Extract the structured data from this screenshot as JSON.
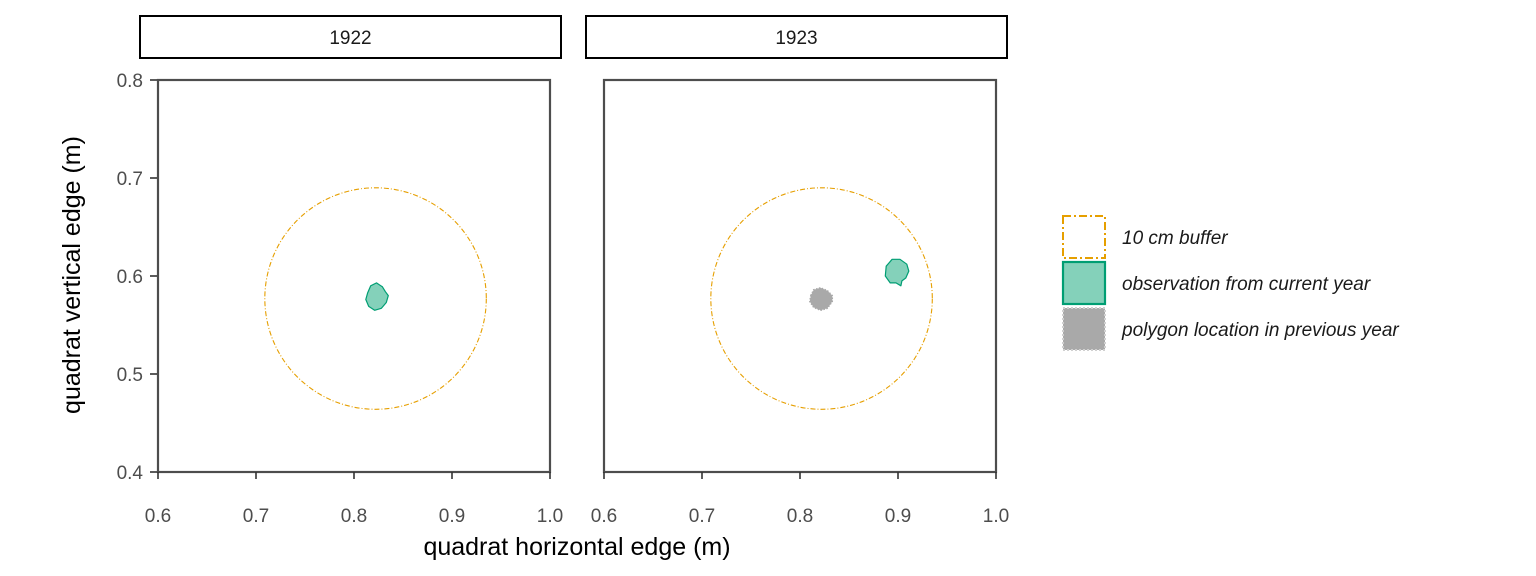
{
  "chart_data": {
    "type": "map",
    "xlabel": "quadrat horizontal edge (m)",
    "ylabel": "quadrat vertical edge (m)",
    "xlim": [
      0.6,
      1.0
    ],
    "ylim": [
      0.4,
      0.8
    ],
    "x_ticks": [
      "0.6",
      "0.7",
      "0.8",
      "0.9",
      "1.0"
    ],
    "y_ticks": [
      "0.4",
      "0.5",
      "0.6",
      "0.7",
      "0.8"
    ],
    "grid": false,
    "legend_position": "right",
    "legend": [
      {
        "label": "10 cm buffer",
        "style": "dashdot-outline",
        "color": "#E69F00"
      },
      {
        "label": "observation from current year",
        "style": "filled",
        "color": "#009E73",
        "fill": "#84D1BA"
      },
      {
        "label": "polygon location in previous year",
        "style": "filled-dotted",
        "color": "#A9A9A9",
        "fill": "#A9A9A9"
      }
    ],
    "panels": [
      {
        "strip": "1922",
        "buffer": {
          "cx": 0.822,
          "cy": 0.577,
          "r": 0.113
        },
        "current": [
          [
            0.814,
            0.583
          ],
          [
            0.817,
            0.59
          ],
          [
            0.823,
            0.593
          ],
          [
            0.829,
            0.589
          ],
          [
            0.832,
            0.584
          ],
          [
            0.835,
            0.58
          ],
          [
            0.833,
            0.573
          ],
          [
            0.828,
            0.567
          ],
          [
            0.821,
            0.565
          ],
          [
            0.815,
            0.569
          ],
          [
            0.812,
            0.576
          ]
        ],
        "previous": []
      },
      {
        "strip": "1923",
        "buffer": {
          "cx": 0.822,
          "cy": 0.577,
          "r": 0.113
        },
        "current": [
          [
            0.888,
            0.61
          ],
          [
            0.894,
            0.617
          ],
          [
            0.902,
            0.617
          ],
          [
            0.909,
            0.612
          ],
          [
            0.911,
            0.605
          ],
          [
            0.908,
            0.598
          ],
          [
            0.904,
            0.595
          ],
          [
            0.903,
            0.59
          ],
          [
            0.898,
            0.593
          ],
          [
            0.892,
            0.593
          ],
          [
            0.887,
            0.6
          ]
        ],
        "previous": [
          [
            0.811,
            0.58
          ],
          [
            0.814,
            0.586
          ],
          [
            0.821,
            0.588
          ],
          [
            0.828,
            0.585
          ],
          [
            0.833,
            0.58
          ],
          [
            0.833,
            0.574
          ],
          [
            0.828,
            0.567
          ],
          [
            0.821,
            0.565
          ],
          [
            0.814,
            0.568
          ],
          [
            0.81,
            0.574
          ]
        ]
      }
    ]
  }
}
